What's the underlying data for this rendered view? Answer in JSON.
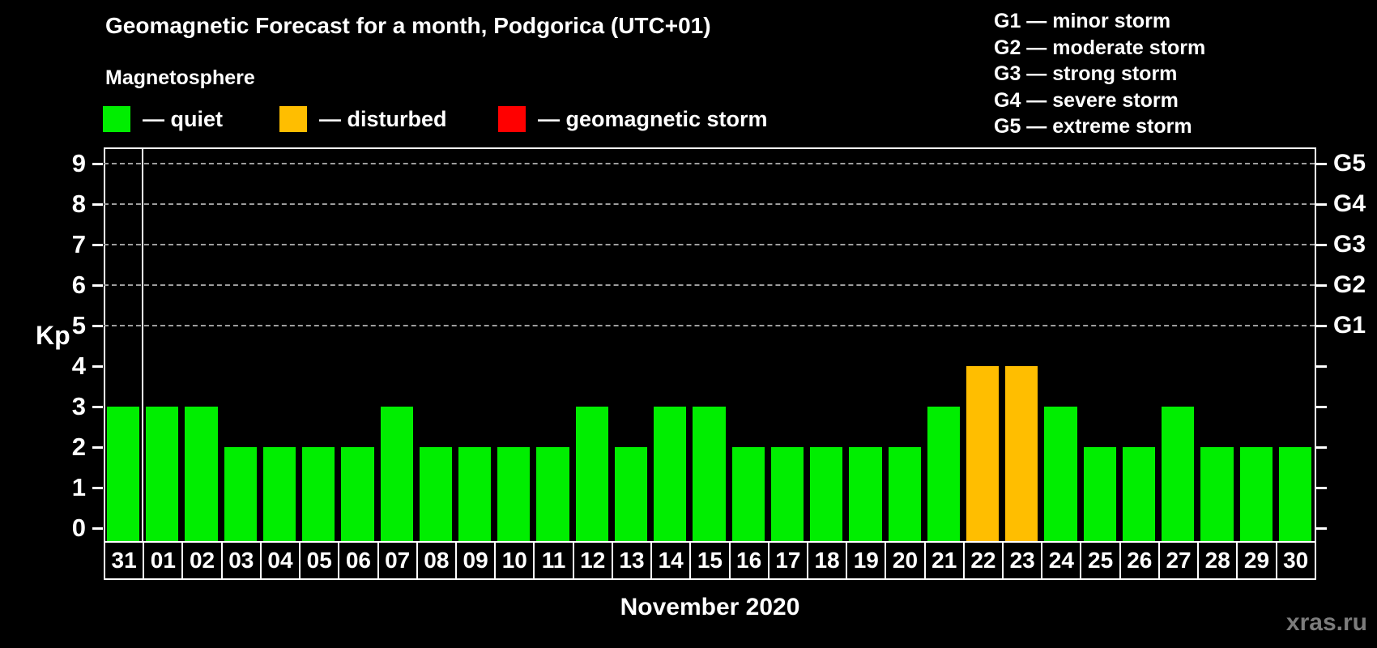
{
  "header": {
    "title": "Geomagnetic Forecast for a month, Podgorica (UTC+01)",
    "subtitle": "Magnetosphere"
  },
  "legend": {
    "items": [
      {
        "name": "quiet",
        "label": "— quiet",
        "color": "#00ee00"
      },
      {
        "name": "disturbed",
        "label": "— disturbed",
        "color": "#ffbe00"
      },
      {
        "name": "storm",
        "label": "— geomagnetic storm",
        "color": "#ff0000"
      }
    ]
  },
  "g_legend": {
    "items": [
      {
        "text": "G1 — minor storm"
      },
      {
        "text": "G2 — moderate storm"
      },
      {
        "text": "G3 — strong storm"
      },
      {
        "text": "G4 — severe storm"
      },
      {
        "text": "G5 — extreme storm"
      }
    ]
  },
  "footer": {
    "month_label": "November 2020",
    "watermark": "xras.ru"
  },
  "chart_data": {
    "type": "bar",
    "title": "Geomagnetic Forecast for a month, Podgorica (UTC+01)",
    "xlabel": "November 2020",
    "ylabel": "Kp",
    "ylim": [
      0,
      9
    ],
    "yticks": [
      0,
      1,
      2,
      3,
      4,
      5,
      6,
      7,
      8,
      9
    ],
    "gridlines_at_kp": [
      5,
      6,
      7,
      8,
      9
    ],
    "grid": "dashed horizontal at G-storm levels only",
    "right_axis": [
      {
        "kp": 5,
        "label": "G1"
      },
      {
        "kp": 6,
        "label": "G2"
      },
      {
        "kp": 7,
        "label": "G3"
      },
      {
        "kp": 8,
        "label": "G4"
      },
      {
        "kp": 9,
        "label": "G5"
      }
    ],
    "categories": [
      "31",
      "01",
      "02",
      "03",
      "04",
      "05",
      "06",
      "07",
      "08",
      "09",
      "10",
      "11",
      "12",
      "13",
      "14",
      "15",
      "16",
      "17",
      "18",
      "19",
      "20",
      "21",
      "22",
      "23",
      "24",
      "25",
      "26",
      "27",
      "28",
      "29",
      "30"
    ],
    "values": [
      3,
      3,
      3,
      2,
      2,
      2,
      2,
      3,
      2,
      2,
      2,
      2,
      3,
      2,
      3,
      3,
      2,
      2,
      2,
      2,
      2,
      3,
      4,
      4,
      3,
      2,
      2,
      3,
      2,
      2,
      2
    ],
    "states": [
      "quiet",
      "quiet",
      "quiet",
      "quiet",
      "quiet",
      "quiet",
      "quiet",
      "quiet",
      "quiet",
      "quiet",
      "quiet",
      "quiet",
      "quiet",
      "quiet",
      "quiet",
      "quiet",
      "quiet",
      "quiet",
      "quiet",
      "quiet",
      "quiet",
      "quiet",
      "disturbed",
      "disturbed",
      "quiet",
      "quiet",
      "quiet",
      "quiet",
      "quiet",
      "quiet",
      "quiet"
    ],
    "colors": {
      "quiet": "#00ee00",
      "disturbed": "#ffbe00",
      "storm": "#ff0000"
    },
    "month_separator_after_index": 0,
    "legend_position": "top-left",
    "bar_color_meaning": {
      "quiet": "Kp 0-3",
      "disturbed": "Kp 4",
      "storm": "Kp 5-9"
    }
  }
}
